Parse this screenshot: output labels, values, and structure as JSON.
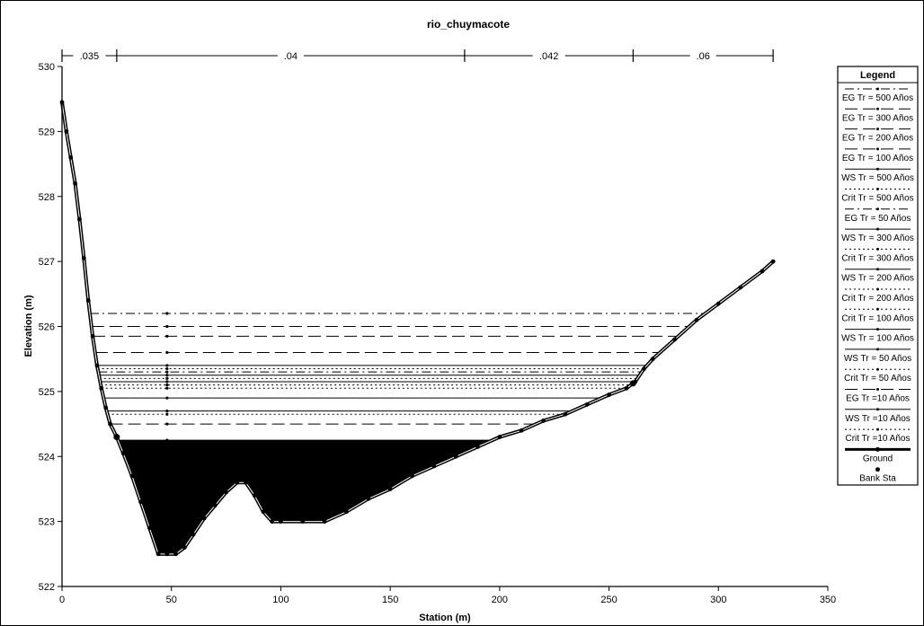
{
  "chart_data": {
    "type": "line",
    "title": "rio_chuymacote",
    "xlabel": "Station (m)",
    "ylabel": "Elevation (m)",
    "xlim": [
      0,
      350
    ],
    "ylim": [
      522,
      530
    ],
    "xticks": [
      0,
      50,
      100,
      150,
      200,
      250,
      300,
      350
    ],
    "yticks": [
      522,
      523,
      524,
      525,
      526,
      527,
      528,
      529,
      530
    ],
    "grid": false,
    "legend_position": "right",
    "legend_title": "Legend",
    "mannings_n": [
      {
        "label": ".035",
        "from": 0,
        "to": 25
      },
      {
        "label": ".04",
        "from": 25,
        "to": 184
      },
      {
        "label": ".042",
        "from": 184,
        "to": 261
      },
      {
        "label": ".06",
        "from": 261,
        "to": 325
      }
    ],
    "ground": {
      "name": "Ground",
      "x": [
        0,
        2,
        4,
        6,
        8,
        10,
        12,
        14,
        16,
        18,
        20,
        22,
        25,
        28,
        32,
        36,
        40,
        44,
        48,
        52,
        56,
        60,
        65,
        70,
        75,
        80,
        84,
        88,
        92,
        96,
        100,
        110,
        120,
        130,
        140,
        150,
        160,
        170,
        180,
        190,
        200,
        210,
        220,
        230,
        240,
        250,
        258,
        262,
        266,
        270,
        280,
        290,
        300,
        310,
        320,
        325
      ],
      "y": [
        529.45,
        529.0,
        528.6,
        528.2,
        527.65,
        527.05,
        526.4,
        525.85,
        525.4,
        525.05,
        524.75,
        524.5,
        524.3,
        524.05,
        523.7,
        523.3,
        522.9,
        522.5,
        522.5,
        522.5,
        522.6,
        522.8,
        523.05,
        523.25,
        523.45,
        523.6,
        523.6,
        523.4,
        523.15,
        523.0,
        523.0,
        523.0,
        523.0,
        523.15,
        523.35,
        523.5,
        523.7,
        523.85,
        524.0,
        524.15,
        524.3,
        524.4,
        524.55,
        524.65,
        524.8,
        524.95,
        525.05,
        525.15,
        525.35,
        525.5,
        525.8,
        526.1,
        526.35,
        526.6,
        526.85,
        527.0
      ]
    },
    "bank_stations": [
      25,
      261
    ],
    "water_levels": [
      {
        "name": "EG Tr = 500 Años",
        "y": 526.2,
        "style": "dashdot"
      },
      {
        "name": "EG Tr = 300 Años",
        "y": 526.0,
        "style": "longdash"
      },
      {
        "name": "EG Tr = 200 Años",
        "y": 525.85,
        "style": "longdash"
      },
      {
        "name": "EG Tr = 100 Años",
        "y": 525.6,
        "style": "longdash"
      },
      {
        "name": "WS Tr = 500 Años",
        "y": 525.4,
        "style": "solid"
      },
      {
        "name": "Crit Tr = 500 Años",
        "y": 525.35,
        "style": "dotted"
      },
      {
        "name": "EG Tr = 50 Años",
        "y": 525.3,
        "style": "dashdot"
      },
      {
        "name": "WS Tr = 300 Años",
        "y": 525.25,
        "style": "solid"
      },
      {
        "name": "Crit Tr = 300 Años",
        "y": 525.2,
        "style": "dotted"
      },
      {
        "name": "WS Tr = 200 Años",
        "y": 525.15,
        "style": "solid"
      },
      {
        "name": "Crit Tr = 200 Años",
        "y": 525.1,
        "style": "dotted"
      },
      {
        "name": "Crit Tr = 100 Años",
        "y": 525.05,
        "style": "dotted"
      },
      {
        "name": "WS Tr = 100 Años",
        "y": 524.9,
        "style": "solid"
      },
      {
        "name": "WS Tr = 50 Años",
        "y": 524.7,
        "style": "solid"
      },
      {
        "name": "Crit Tr = 50 Años",
        "y": 524.65,
        "style": "dotted"
      },
      {
        "name": "EG Tr =10 Años",
        "y": 524.5,
        "style": "longdash"
      },
      {
        "name": "WS Tr =10 Años",
        "y": 524.25,
        "style": "solid",
        "filled": true
      },
      {
        "name": "Crit Tr =10 Años",
        "y": 524.22,
        "style": "dotted"
      }
    ],
    "legend_entries": [
      "EG Tr = 500 Años",
      "EG Tr = 300 Años",
      "EG Tr = 200 Años",
      "EG Tr = 100 Años",
      "WS Tr = 500 Años",
      "Crit Tr = 500 Años",
      "EG Tr = 50 Años",
      "WS Tr = 300 Años",
      "Crit Tr = 300 Años",
      "WS Tr = 200 Años",
      "Crit Tr = 200 Años",
      "Crit Tr = 100 Años",
      "WS Tr = 100 Años",
      "WS Tr = 50 Años",
      "Crit Tr = 50 Años",
      "EG Tr =10 Años",
      "WS Tr =10 Años",
      "Crit Tr =10 Años",
      "Ground",
      "Bank Sta"
    ],
    "colors": {
      "line": "#000000",
      "fill": "#000000",
      "background": "#ffffff"
    }
  }
}
